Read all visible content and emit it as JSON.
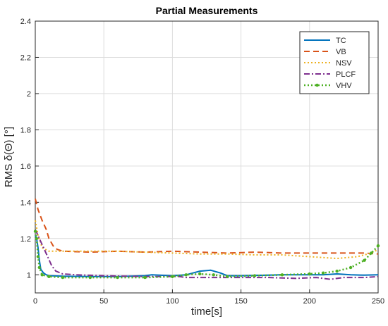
{
  "chart_data": {
    "type": "line",
    "title": "Partial Measurements",
    "xlabel": "time[s]",
    "ylabel": "RMS δ(Θ) [°]",
    "xlim": [
      0,
      250
    ],
    "ylim": [
      0.9,
      2.4
    ],
    "xticks": [
      0,
      50,
      100,
      150,
      200,
      250
    ],
    "yticks": [
      1,
      1.2,
      1.4,
      1.6,
      1.8,
      2,
      2.2,
      2.4
    ],
    "x_tick_labels": [
      "0",
      "50",
      "100",
      "150",
      "200",
      "250"
    ],
    "y_tick_labels": [
      "1",
      "1.2",
      "1.4",
      "1.6",
      "1.8",
      "2",
      "2.2",
      "2.4"
    ],
    "grid": true,
    "legend_position": "top-right",
    "series": [
      {
        "name": "TC",
        "color": "#0072BD",
        "style": "solid",
        "points": [
          [
            0,
            1.22
          ],
          [
            1,
            1.2
          ],
          [
            2,
            1.15
          ],
          [
            3,
            1.08
          ],
          [
            4,
            1.03
          ],
          [
            6,
            1.01
          ],
          [
            8,
            1.0
          ],
          [
            10,
            0.995
          ],
          [
            20,
            0.992
          ],
          [
            40,
            0.99
          ],
          [
            60,
            0.99
          ],
          [
            80,
            0.995
          ],
          [
            85,
            1.0
          ],
          [
            90,
            0.998
          ],
          [
            100,
            0.995
          ],
          [
            110,
            1.0
          ],
          [
            115,
            1.01
          ],
          [
            120,
            1.02
          ],
          [
            128,
            1.025
          ],
          [
            135,
            1.01
          ],
          [
            140,
            0.995
          ],
          [
            150,
            0.995
          ],
          [
            180,
            1.0
          ],
          [
            200,
            1.0
          ],
          [
            210,
            1.0
          ],
          [
            220,
            1.005
          ],
          [
            230,
            1.0
          ],
          [
            240,
            0.998
          ],
          [
            250,
            1.0
          ]
        ]
      },
      {
        "name": "VB",
        "color": "#D95319",
        "style": "dashed",
        "points": [
          [
            0,
            1.42
          ],
          [
            2,
            1.36
          ],
          [
            5,
            1.3
          ],
          [
            8,
            1.25
          ],
          [
            10,
            1.2
          ],
          [
            13,
            1.16
          ],
          [
            16,
            1.14
          ],
          [
            20,
            1.13
          ],
          [
            40,
            1.125
          ],
          [
            60,
            1.13
          ],
          [
            80,
            1.125
          ],
          [
            100,
            1.13
          ],
          [
            120,
            1.125
          ],
          [
            140,
            1.12
          ],
          [
            160,
            1.125
          ],
          [
            180,
            1.12
          ],
          [
            200,
            1.12
          ],
          [
            220,
            1.12
          ],
          [
            240,
            1.12
          ],
          [
            250,
            1.115
          ]
        ]
      },
      {
        "name": "NSV",
        "color": "#EDB120",
        "style": "dotted",
        "points": [
          [
            0,
            1.3
          ],
          [
            2,
            1.22
          ],
          [
            5,
            1.15
          ],
          [
            10,
            1.13
          ],
          [
            20,
            1.13
          ],
          [
            40,
            1.13
          ],
          [
            60,
            1.13
          ],
          [
            80,
            1.125
          ],
          [
            100,
            1.12
          ],
          [
            120,
            1.115
          ],
          [
            140,
            1.115
          ],
          [
            160,
            1.11
          ],
          [
            180,
            1.11
          ],
          [
            200,
            1.1
          ],
          [
            220,
            1.09
          ],
          [
            235,
            1.1
          ],
          [
            245,
            1.12
          ],
          [
            250,
            1.14
          ]
        ]
      },
      {
        "name": "PLCF",
        "color": "#7E2F8E",
        "style": "dashdot",
        "points": [
          [
            0,
            1.25
          ],
          [
            3,
            1.2
          ],
          [
            6,
            1.15
          ],
          [
            9,
            1.1
          ],
          [
            12,
            1.05
          ],
          [
            15,
            1.02
          ],
          [
            20,
            1.005
          ],
          [
            30,
            1.0
          ],
          [
            50,
            0.995
          ],
          [
            80,
            0.99
          ],
          [
            100,
            0.99
          ],
          [
            105,
            0.99
          ],
          [
            110,
            0.985
          ],
          [
            130,
            0.985
          ],
          [
            150,
            0.985
          ],
          [
            170,
            0.985
          ],
          [
            190,
            0.98
          ],
          [
            205,
            0.985
          ],
          [
            215,
            0.975
          ],
          [
            225,
            0.985
          ],
          [
            240,
            0.985
          ],
          [
            250,
            0.99
          ]
        ]
      },
      {
        "name": "VHV",
        "color": "#4DB023",
        "style": "dotted-marker",
        "points": [
          [
            0,
            1.24
          ],
          [
            1,
            1.2
          ],
          [
            2,
            1.1
          ],
          [
            3,
            1.04
          ],
          [
            5,
            1.0
          ],
          [
            10,
            0.99
          ],
          [
            20,
            0.985
          ],
          [
            40,
            0.985
          ],
          [
            60,
            0.985
          ],
          [
            80,
            0.985
          ],
          [
            100,
            0.99
          ],
          [
            110,
            1.0
          ],
          [
            120,
            1.005
          ],
          [
            130,
            1.0
          ],
          [
            140,
            0.99
          ],
          [
            160,
            0.995
          ],
          [
            180,
            1.0
          ],
          [
            200,
            1.005
          ],
          [
            210,
            1.01
          ],
          [
            220,
            1.02
          ],
          [
            230,
            1.04
          ],
          [
            240,
            1.08
          ],
          [
            245,
            1.12
          ],
          [
            250,
            1.16
          ]
        ]
      }
    ]
  }
}
